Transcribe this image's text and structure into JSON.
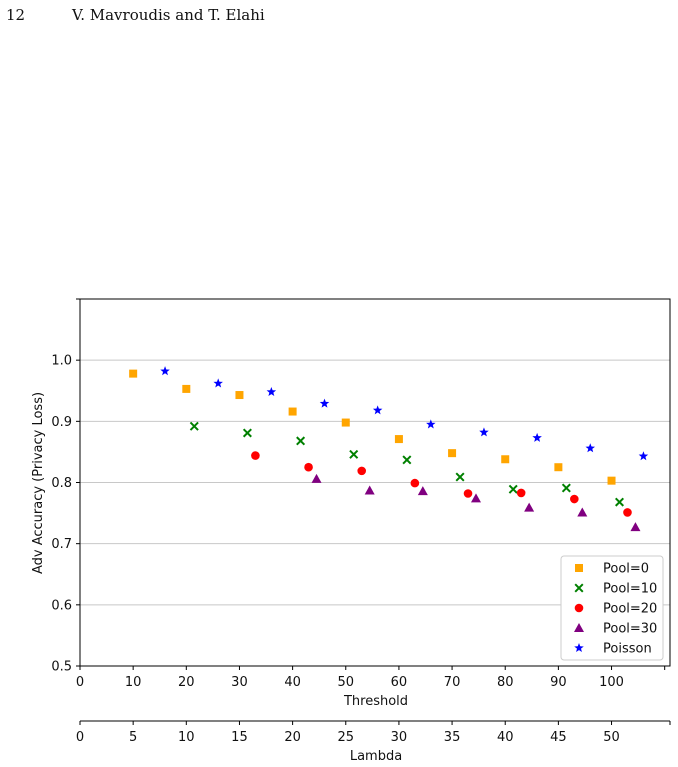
{
  "header": {
    "page_number": "12",
    "authors": "V. Mavroudis and T. Elahi"
  },
  "colors": {
    "pool0": "#ffa500",
    "pool10": "#008000",
    "pool20": "#ff0000",
    "pool30": "#800080",
    "poisson": "#0000ff",
    "grid": "#c8c8c8",
    "axis": "#000000"
  },
  "chart_data": {
    "type": "scatter",
    "title": "",
    "xlabel": "Threshold",
    "ylabel": "Adv Accuracy (Privacy Loss)",
    "secondary_xlabel": "Lambda",
    "xlim": [
      0,
      111
    ],
    "ylim": [
      0.5,
      1.1
    ],
    "secondary_xlim": [
      0,
      55.5
    ],
    "xticks": [
      "0",
      "10",
      "20",
      "30",
      "40",
      "50",
      "60",
      "70",
      "80",
      "90",
      "100"
    ],
    "yticks": [
      "0.5",
      "0.6",
      "0.7",
      "0.8",
      "0.9",
      "1.0"
    ],
    "secondary_xticks": [
      "0",
      "5",
      "10",
      "15",
      "20",
      "25",
      "30",
      "35",
      "40",
      "45",
      "50"
    ],
    "grid": "horizontal",
    "legend_position": "lower-right",
    "series": [
      {
        "name": "Pool=0",
        "marker": "square",
        "color_key": "pool0",
        "points": [
          [
            10,
            0.978
          ],
          [
            20,
            0.953
          ],
          [
            30,
            0.943
          ],
          [
            40,
            0.916
          ],
          [
            50,
            0.898
          ],
          [
            60,
            0.871
          ],
          [
            70,
            0.848
          ],
          [
            80,
            0.838
          ],
          [
            90,
            0.825
          ],
          [
            100,
            0.803
          ]
        ]
      },
      {
        "name": "Pool=10",
        "marker": "x",
        "color_key": "pool10",
        "points": [
          [
            21.5,
            0.892
          ],
          [
            31.5,
            0.881
          ],
          [
            41.5,
            0.868
          ],
          [
            51.5,
            0.846
          ],
          [
            61.5,
            0.837
          ],
          [
            71.5,
            0.809
          ],
          [
            81.5,
            0.789
          ],
          [
            91.5,
            0.791
          ],
          [
            101.5,
            0.768
          ]
        ]
      },
      {
        "name": "Pool=20",
        "marker": "circle",
        "color_key": "pool20",
        "points": [
          [
            33,
            0.844
          ],
          [
            43,
            0.825
          ],
          [
            53,
            0.819
          ],
          [
            63,
            0.799
          ],
          [
            73,
            0.782
          ],
          [
            83,
            0.783
          ],
          [
            93,
            0.773
          ],
          [
            103,
            0.751
          ]
        ]
      },
      {
        "name": "Pool=30",
        "marker": "triangle",
        "color_key": "pool30",
        "points": [
          [
            44.5,
            0.806
          ],
          [
            54.5,
            0.787
          ],
          [
            64.5,
            0.786
          ],
          [
            74.5,
            0.774
          ],
          [
            84.5,
            0.759
          ],
          [
            94.5,
            0.751
          ],
          [
            104.5,
            0.727
          ]
        ]
      },
      {
        "name": "Poisson",
        "marker": "star",
        "color_key": "poisson",
        "points": [
          [
            16,
            0.982
          ],
          [
            26,
            0.962
          ],
          [
            36,
            0.948
          ],
          [
            46,
            0.929
          ],
          [
            56,
            0.918
          ],
          [
            66,
            0.895
          ],
          [
            76,
            0.882
          ],
          [
            86,
            0.873
          ],
          [
            96,
            0.856
          ],
          [
            106,
            0.843
          ]
        ]
      }
    ]
  }
}
